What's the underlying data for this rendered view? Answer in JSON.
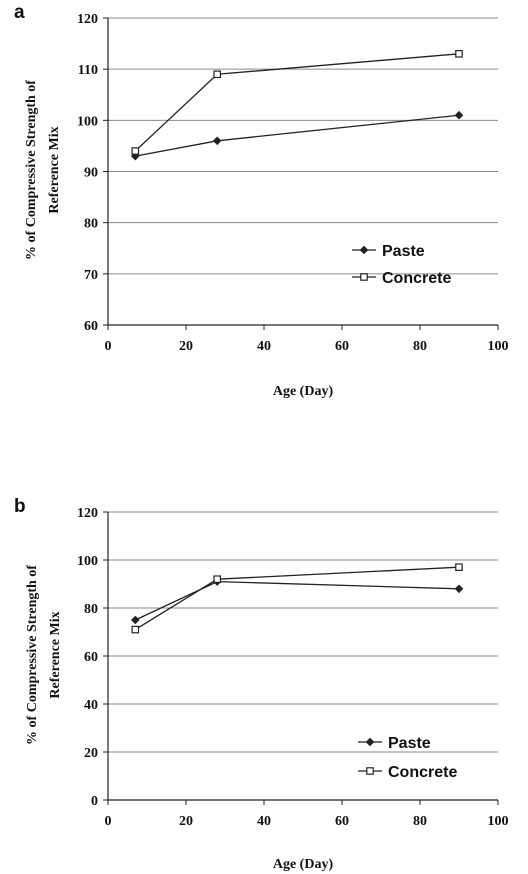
{
  "colors": {
    "line": "#222222",
    "grid": "#8a8a8a",
    "axis": "#222222",
    "text": "#111111"
  },
  "chart_data": [
    {
      "panel_label": "a",
      "type": "line",
      "xlabel": "Age (Day)",
      "ylabel_line1": "% of Compressive Strength of",
      "ylabel_line2": "Reference Mix",
      "xlim": [
        0,
        100
      ],
      "ylim": [
        60,
        120
      ],
      "xticks": [
        0,
        20,
        40,
        60,
        80,
        100
      ],
      "yticks": [
        60,
        70,
        80,
        90,
        100,
        110,
        120
      ],
      "x_tick_labels": [
        "0",
        "20",
        "40",
        "60",
        "80",
        "100"
      ],
      "y_tick_labels": [
        "60",
        "70",
        "80",
        "90",
        "100",
        "110",
        "120"
      ],
      "grid": "horizontal",
      "legend_position": "lower-right",
      "x": [
        7,
        28,
        90
      ],
      "series": [
        {
          "name": "Paste",
          "marker": "diamond-filled",
          "values": [
            93,
            96,
            101
          ]
        },
        {
          "name": "Concrete",
          "marker": "square-open",
          "values": [
            94,
            109,
            113
          ]
        }
      ]
    },
    {
      "panel_label": "b",
      "type": "line",
      "xlabel": "Age (Day)",
      "ylabel_line1": "% of Compressive Strength of",
      "ylabel_line2": "Reference Mix",
      "xlim": [
        0,
        100
      ],
      "ylim": [
        0,
        120
      ],
      "xticks": [
        0,
        20,
        40,
        60,
        80,
        100
      ],
      "yticks": [
        0,
        20,
        40,
        60,
        80,
        100,
        120
      ],
      "x_tick_labels": [
        "0",
        "20",
        "40",
        "60",
        "80",
        "100"
      ],
      "y_tick_labels": [
        "0",
        "20",
        "40",
        "60",
        "80",
        "100",
        "120"
      ],
      "grid": "horizontal",
      "legend_position": "lower-right",
      "x": [
        7,
        28,
        90
      ],
      "series": [
        {
          "name": "Paste",
          "marker": "diamond-filled",
          "values": [
            75,
            91,
            88
          ]
        },
        {
          "name": "Concrete",
          "marker": "square-open",
          "values": [
            71,
            92,
            97
          ]
        }
      ]
    }
  ]
}
